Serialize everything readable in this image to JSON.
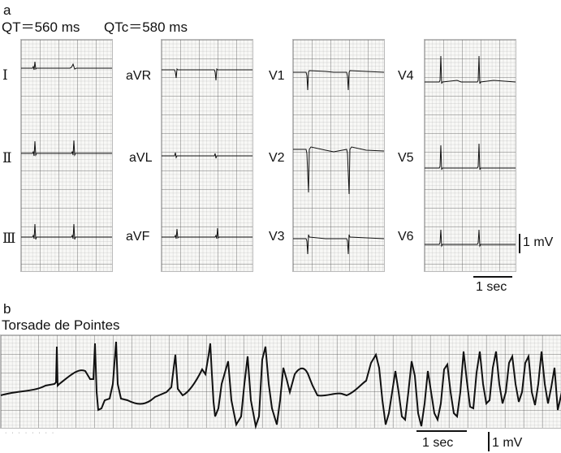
{
  "panel_a": {
    "letter": "a",
    "qt_text": "QT＝560 ms",
    "qtc_text": "QTc＝580 ms",
    "leads": {
      "lead_I": "Ⅰ",
      "lead_II": "Ⅱ",
      "lead_III": "Ⅲ",
      "aVR": "aVR",
      "aVL": "aVL",
      "aVF": "aVF",
      "V1": "V1",
      "V2": "V2",
      "V3": "V3",
      "V4": "V4",
      "V5": "V5",
      "V6": "V6"
    },
    "voltage_label": "1 mV",
    "time_label": "1 sec"
  },
  "panel_b": {
    "letter": "b",
    "title": "Torsade de Pointes",
    "time_label": "1 sec",
    "voltage_label": "1 mV"
  }
}
